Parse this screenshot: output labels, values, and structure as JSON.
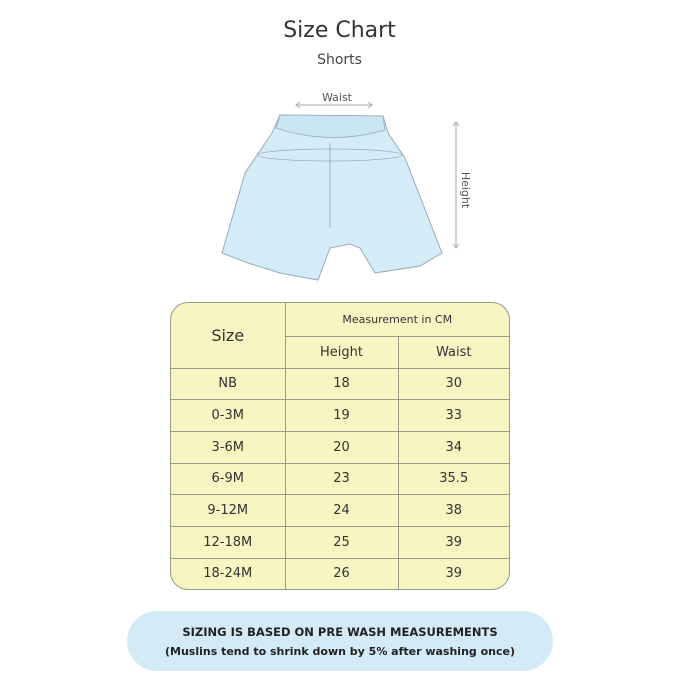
{
  "title": "Size Chart",
  "subtitle": "Shorts",
  "illustration": {
    "waist_label": "Waist",
    "height_label": "Height",
    "garment_color": "#d4ecf7"
  },
  "table": {
    "size_header": "Size",
    "group_header": "Measurement in CM",
    "columns": [
      "Height",
      "Waist"
    ],
    "rows": [
      {
        "size": "NB",
        "height": "18",
        "waist": "30"
      },
      {
        "size": "0-3M",
        "height": "19",
        "waist": "33"
      },
      {
        "size": "3-6M",
        "height": "20",
        "waist": "34"
      },
      {
        "size": "6-9M",
        "height": "23",
        "waist": "35.5"
      },
      {
        "size": "9-12M",
        "height": "24",
        "waist": "38"
      },
      {
        "size": "12-18M",
        "height": "25",
        "waist": "39"
      },
      {
        "size": "18-24M",
        "height": "26",
        "waist": "39"
      }
    ],
    "background_color": "#f7f5c2"
  },
  "note": {
    "line1": "SIZING IS BASED ON PRE WASH MEASUREMENTS",
    "line2": "(Muslins tend to shrink down by 5% after washing once)",
    "background_color": "#d3ebf7"
  }
}
